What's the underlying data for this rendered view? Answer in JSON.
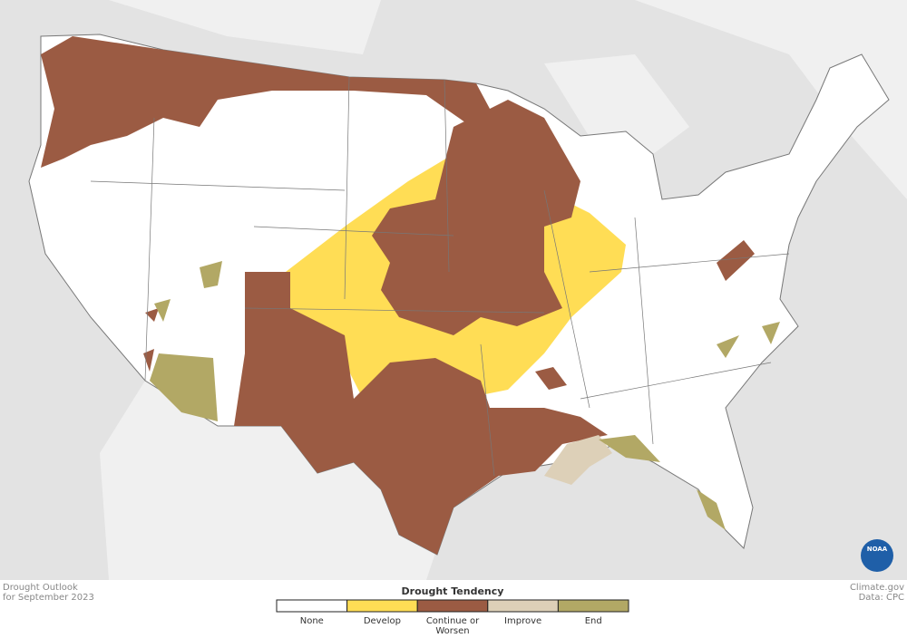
{
  "footer": {
    "title": "Drought Outlook",
    "subtitle": "for September 2023",
    "credit": "Climate.gov",
    "source": "Data: CPC"
  },
  "legend": {
    "title": "Drought Tendency",
    "items": [
      {
        "label": [
          "None"
        ],
        "color": "#ffffff"
      },
      {
        "label": [
          "Develop"
        ],
        "color": "#ffdd55"
      },
      {
        "label": [
          "Continue or",
          "Worsen"
        ],
        "color": "#9b5b43"
      },
      {
        "label": [
          "Improve"
        ],
        "color": "#ddd0b8"
      },
      {
        "label": [
          "End"
        ],
        "color": "#b2a865"
      }
    ]
  },
  "logo": {
    "text": "NOAA"
  }
}
